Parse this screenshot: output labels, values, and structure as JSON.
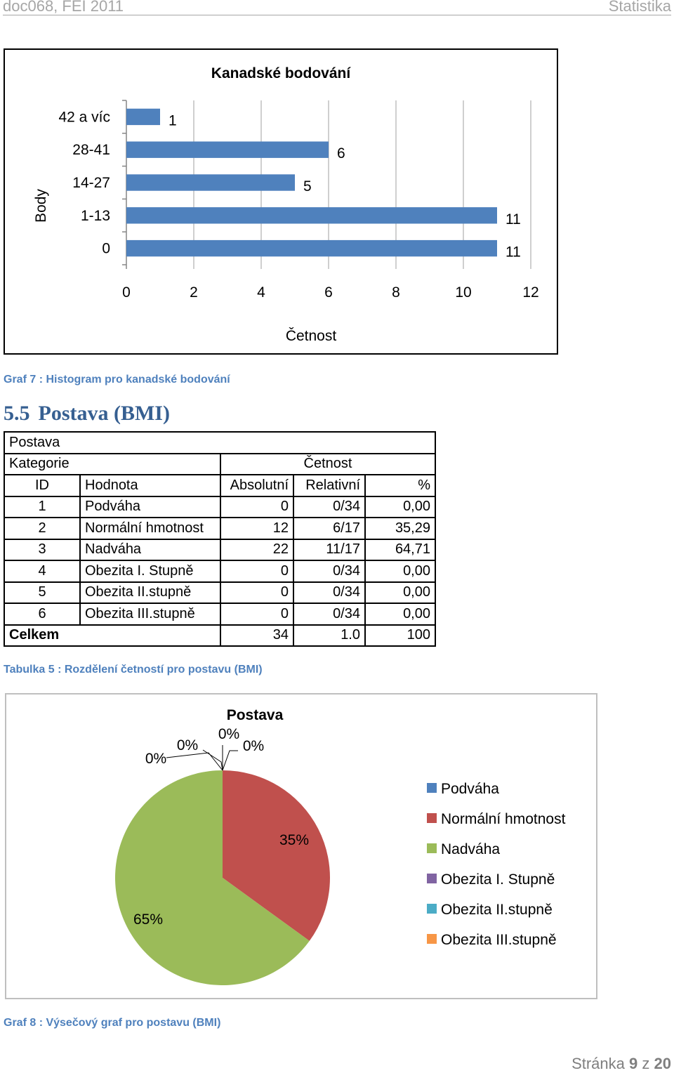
{
  "header": {
    "left": "doc068, FEI 2011",
    "right": "Statistika"
  },
  "histogram": {
    "caption": "Graf 7 : Histogram pro kanadské bodování",
    "chart_data": {
      "type": "bar",
      "orientation": "horizontal",
      "title": "Kanadské bodování",
      "xlabel": "Četnost",
      "ylabel": "Body",
      "categories": [
        "42 a víc",
        "28-41",
        "14-27",
        "1-13",
        "0"
      ],
      "values": [
        1,
        6,
        5,
        11,
        11
      ],
      "xlim": [
        0,
        12
      ],
      "xticks": [
        0,
        2,
        4,
        6,
        8,
        10,
        12
      ],
      "grid": true,
      "bar_color": "#4f81bd"
    }
  },
  "section": {
    "number": "5.5",
    "title": "Postava (BMI)"
  },
  "table": {
    "caption": "Tabulka 5 : Rozdělení četností pro postavu (BMI)",
    "title": "Postava",
    "group_headers": {
      "kategorie": "Kategorie",
      "cetnost": "Četnost"
    },
    "columns": [
      "ID",
      "Hodnota",
      "Absolutní",
      "Relativní",
      "%"
    ],
    "rows": [
      [
        "1",
        "Podváha",
        "0",
        "0/34",
        "0,00"
      ],
      [
        "2",
        "Normální hmotnost",
        "12",
        "6/17",
        "35,29"
      ],
      [
        "3",
        "Nadváha",
        "22",
        "11/17",
        "64,71"
      ],
      [
        "4",
        "Obezita I. Stupně",
        "0",
        "0/34",
        "0,00"
      ],
      [
        "5",
        "Obezita II.stupně",
        "0",
        "0/34",
        "0,00"
      ],
      [
        "6",
        "Obezita III.stupně",
        "0",
        "0/34",
        "0,00"
      ]
    ],
    "total": {
      "label": "Celkem",
      "absolute": "34",
      "relative": "1.0",
      "percent": "100"
    }
  },
  "pie": {
    "caption": "Graf 8 : Výsečový graf pro postavu (BMI)",
    "chart_data": {
      "type": "pie",
      "title": "Postava",
      "legend_position": "right",
      "labels": [
        "Podváha",
        "Normální hmotnost",
        "Nadváha",
        "Obezita I. Stupně",
        "Obezita II.stupně",
        "Obezita III.stupně"
      ],
      "values": [
        0,
        35,
        65,
        0,
        0,
        0
      ],
      "data_labels": [
        "0%",
        "35%",
        "65%",
        "0%",
        "0%",
        "0%"
      ],
      "colors": [
        "#4f81bd",
        "#c0504d",
        "#9bbb59",
        "#8064a2",
        "#4bacc6",
        "#f79646"
      ]
    }
  },
  "footer": {
    "prefix": "Stránka",
    "page": "9",
    "sep": "z",
    "total": "20"
  }
}
